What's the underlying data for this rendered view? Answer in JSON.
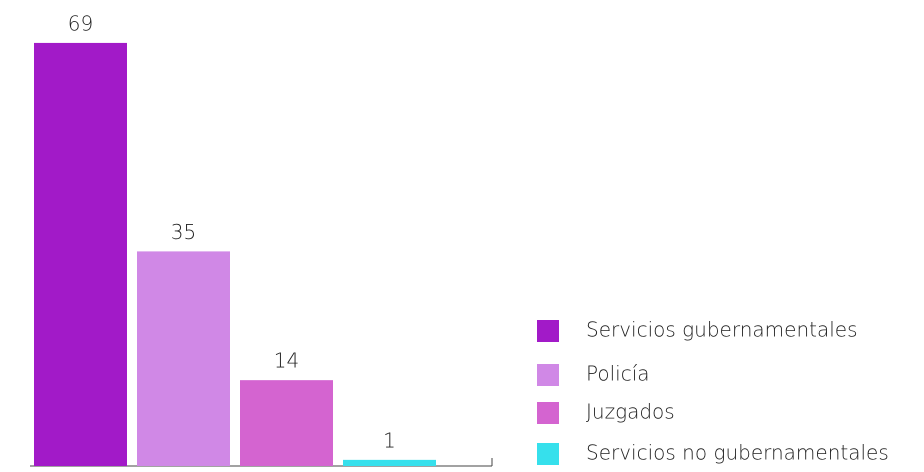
{
  "chart_data": {
    "type": "bar",
    "series": [
      {
        "name": "Servicios gubernamentales",
        "color": "#a21ac8",
        "values": [
          69
        ]
      },
      {
        "name": "Policía",
        "color": "#d088e6",
        "values": [
          35
        ]
      },
      {
        "name": "Juzgados",
        "color": "#d464d0",
        "values": [
          14
        ]
      },
      {
        "name": "Servicios no gubernamentales",
        "color": "#36e0ec",
        "values": [
          1
        ]
      }
    ],
    "ylim": [
      0,
      76
    ],
    "legend": "right"
  }
}
